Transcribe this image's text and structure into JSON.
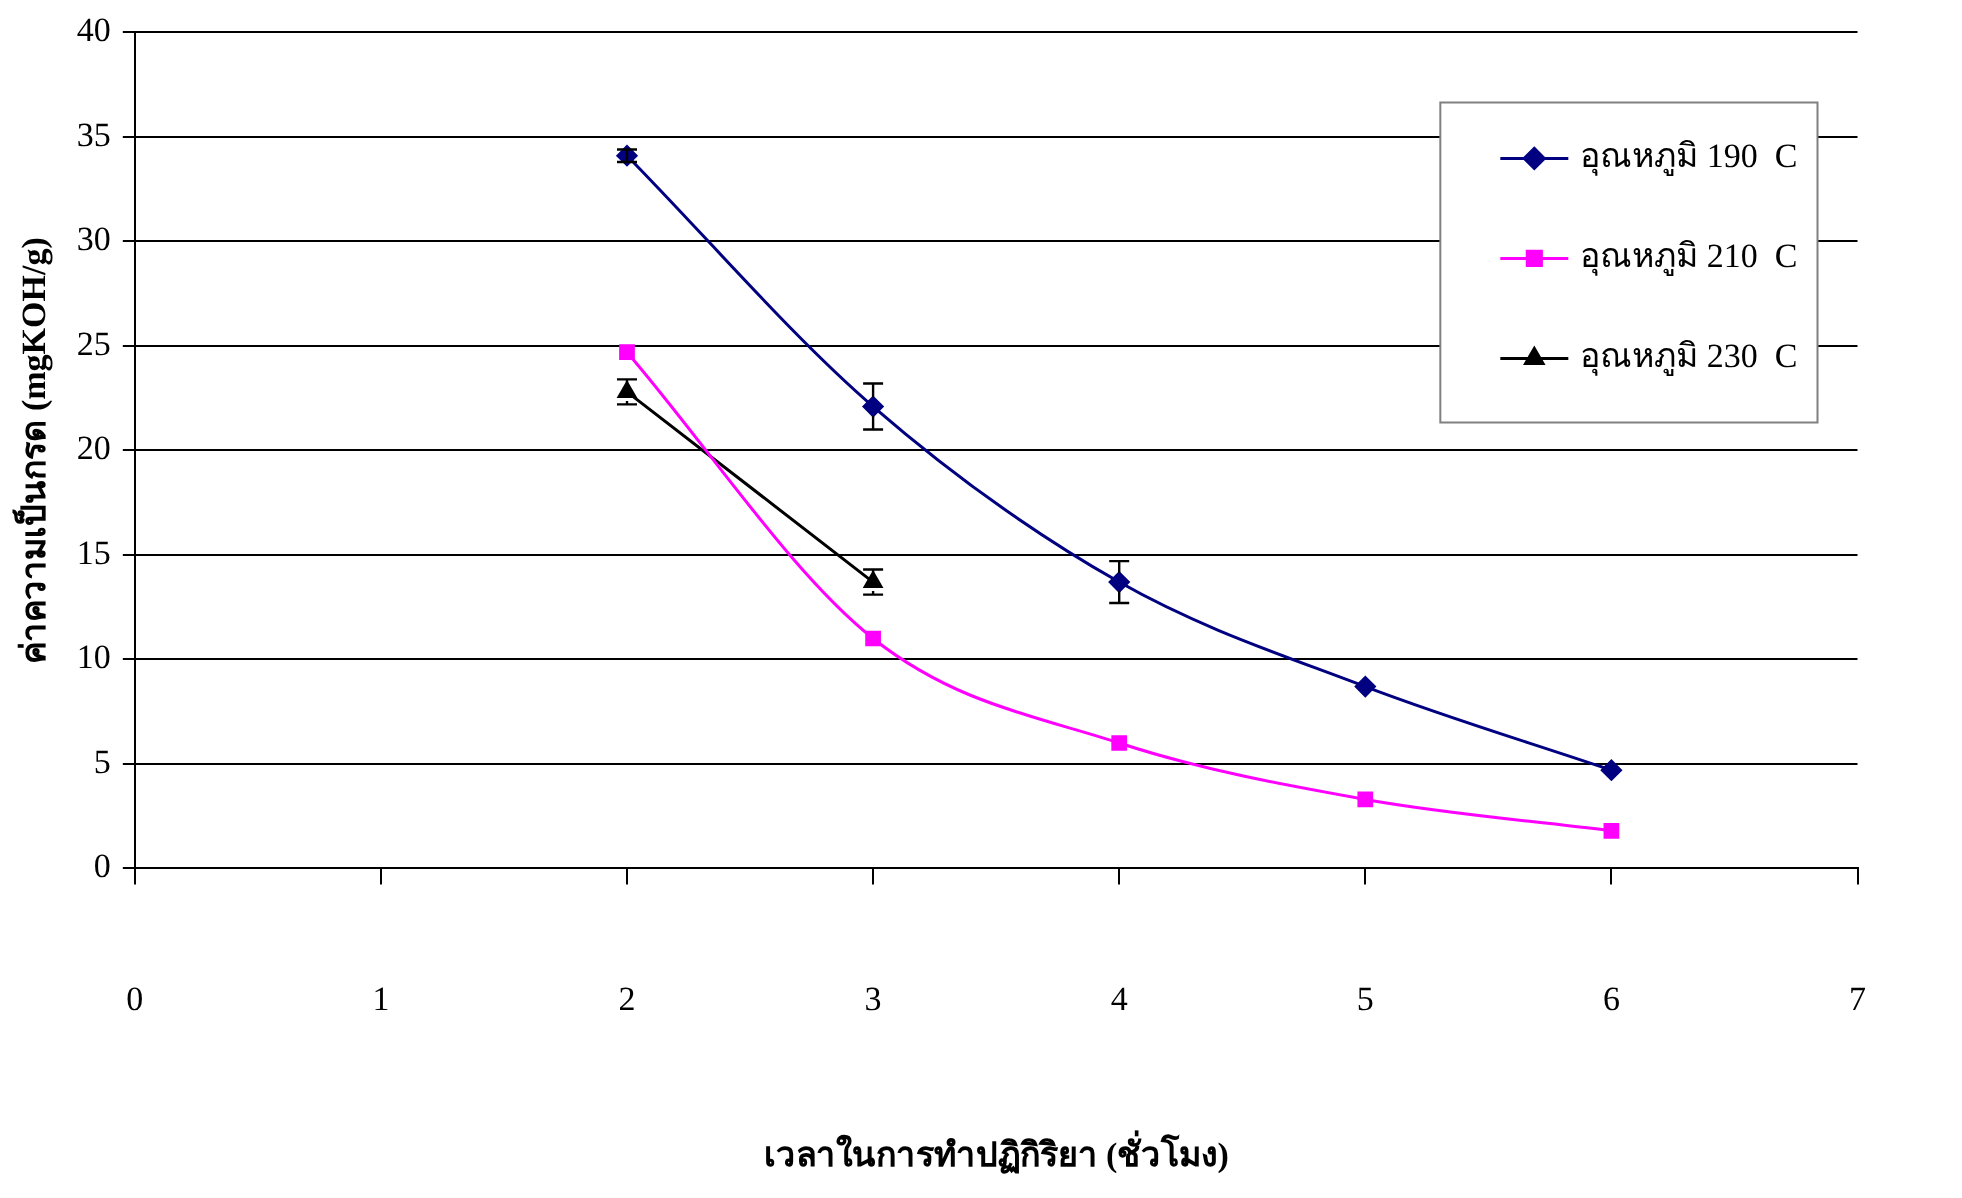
{
  "chart_data": {
    "type": "line",
    "xlabel": "เวลาในการทำปฏิกิริยา (ชั่วโมง)",
    "ylabel": "ค่าความเป็นกรด (mgKOH/g)",
    "xlim": [
      0,
      7
    ],
    "xticks": [
      0,
      1,
      2,
      3,
      4,
      5,
      6,
      7
    ],
    "ylim": [
      0,
      40
    ],
    "yticks": [
      0,
      5,
      10,
      15,
      20,
      25,
      30,
      35,
      40
    ],
    "grid": "y",
    "legend": "top right",
    "series": [
      {
        "name": "อุณหภูมิ 190  C",
        "color": "#000080",
        "marker": "diamond",
        "x": [
          2,
          3,
          4,
          5,
          6
        ],
        "values": [
          34.1,
          22.1,
          13.7,
          8.7,
          4.7
        ],
        "errors": [
          0.3,
          1.1,
          1.0,
          null,
          null
        ]
      },
      {
        "name": "อุณหภูมิ 210  C",
        "color": "#ff00ff",
        "marker": "square",
        "x": [
          2,
          3,
          4,
          5,
          6
        ],
        "values": [
          24.7,
          11.0,
          6.0,
          3.3,
          1.8
        ]
      },
      {
        "name": "อุณหภูมิ 230  C",
        "color": "#000000",
        "marker": "triangle",
        "x": [
          2,
          3
        ],
        "values": [
          22.8,
          13.7
        ],
        "errors": [
          0.6,
          0.6
        ]
      }
    ]
  }
}
